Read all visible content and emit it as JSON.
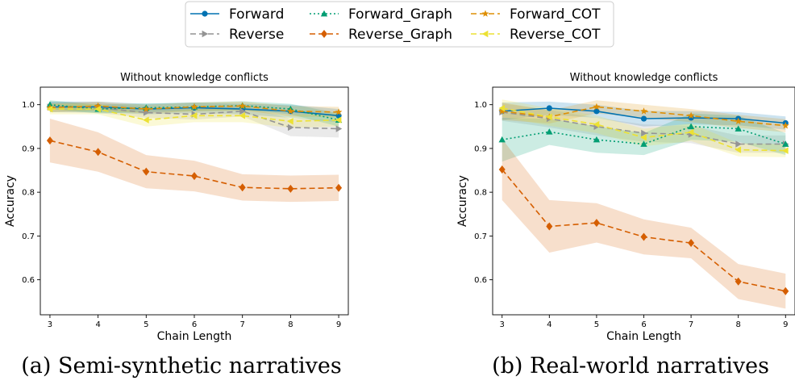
{
  "legend": {
    "placement": "top-center",
    "entries": [
      {
        "label": "Forward",
        "key": "forward"
      },
      {
        "label": "Reverse",
        "key": "reverse"
      },
      {
        "label": "Forward_Graph",
        "key": "forward_graph"
      },
      {
        "label": "Reverse_Graph",
        "key": "reverse_graph"
      },
      {
        "label": "Forward_COT",
        "key": "forward_cot"
      },
      {
        "label": "Reverse_COT",
        "key": "reverse_cot"
      }
    ]
  },
  "styles": {
    "forward": {
      "color": "#0072b2",
      "dash": "",
      "marker": "circle"
    },
    "reverse": {
      "color": "#949494",
      "dash": "7,4",
      "marker": "triangle-right"
    },
    "forward_graph": {
      "color": "#029e73",
      "dash": "2,3",
      "marker": "triangle-up"
    },
    "reverse_graph": {
      "color": "#d55e00",
      "dash": "7,4",
      "marker": "diamond"
    },
    "forward_cot": {
      "color": "#de8f05",
      "dash": "7,4",
      "marker": "star"
    },
    "reverse_cot": {
      "color": "#ece133",
      "dash": "7,4",
      "marker": "triangle-left"
    }
  },
  "chart_data": [
    {
      "type": "line",
      "title": "Without knowledge conflicts",
      "xlabel": "Chain Length",
      "ylabel": "Accuracy",
      "x": [
        3,
        4,
        5,
        6,
        7,
        8,
        9
      ],
      "xlim": [
        2.8,
        9.2
      ],
      "ylim": [
        0.52,
        1.04
      ],
      "yticks": [
        0.6,
        0.7,
        0.8,
        0.9,
        1.0
      ],
      "ytick_labels": [
        "0.6",
        "0.7",
        "0.8",
        "0.9",
        "1.0"
      ],
      "grid": false,
      "caption": "(a) Semi-synthetic narratives",
      "series": [
        {
          "key": "forward",
          "name": "Forward",
          "values": [
            0.995,
            0.995,
            0.99,
            0.993,
            0.99,
            0.985,
            0.975
          ],
          "band": [
            0.012,
            0.012,
            0.012,
            0.012,
            0.012,
            0.015,
            0.015
          ]
        },
        {
          "key": "reverse",
          "name": "Reverse",
          "values": [
            0.995,
            0.993,
            0.982,
            0.978,
            0.985,
            0.948,
            0.945
          ],
          "band": [
            0.012,
            0.012,
            0.012,
            0.012,
            0.012,
            0.02,
            0.02
          ]
        },
        {
          "key": "forward_graph",
          "name": "Forward_Graph",
          "values": [
            1.0,
            0.99,
            0.993,
            0.995,
            0.998,
            0.99,
            0.965
          ],
          "band": [
            0.01,
            0.01,
            0.01,
            0.01,
            0.01,
            0.012,
            0.015
          ]
        },
        {
          "key": "reverse_graph",
          "name": "Reverse_Graph",
          "values": [
            0.918,
            0.892,
            0.847,
            0.837,
            0.811,
            0.808,
            0.81
          ],
          "band": [
            0.05,
            0.045,
            0.038,
            0.035,
            0.03,
            0.03,
            0.03
          ]
        },
        {
          "key": "forward_cot",
          "name": "Forward_COT",
          "values": [
            0.993,
            0.997,
            0.99,
            0.995,
            0.997,
            0.985,
            0.983
          ],
          "band": [
            0.01,
            0.01,
            0.01,
            0.01,
            0.01,
            0.012,
            0.012
          ]
        },
        {
          "key": "reverse_cot",
          "name": "Reverse_COT",
          "values": [
            0.99,
            0.99,
            0.965,
            0.975,
            0.975,
            0.962,
            0.965
          ],
          "band": [
            0.012,
            0.012,
            0.015,
            0.015,
            0.015,
            0.015,
            0.015
          ]
        }
      ]
    },
    {
      "type": "line",
      "title": "Without knowledge conflicts",
      "xlabel": "Chain Length",
      "ylabel": "Accuracy",
      "x": [
        3,
        4,
        5,
        6,
        7,
        8,
        9
      ],
      "xlim": [
        2.8,
        9.2
      ],
      "ylim": [
        0.52,
        1.04
      ],
      "yticks": [
        0.6,
        0.7,
        0.8,
        0.9,
        1.0
      ],
      "ytick_labels": [
        "0.6",
        "0.7",
        "0.8",
        "0.9",
        "1.0"
      ],
      "grid": false,
      "caption": "(b) Real-world narratives",
      "series": [
        {
          "key": "forward",
          "name": "Forward",
          "values": [
            0.985,
            0.992,
            0.985,
            0.968,
            0.97,
            0.968,
            0.958
          ],
          "band": [
            0.02,
            0.015,
            0.015,
            0.018,
            0.015,
            0.015,
            0.015
          ]
        },
        {
          "key": "reverse",
          "name": "Reverse",
          "values": [
            0.983,
            0.968,
            0.95,
            0.935,
            0.932,
            0.91,
            0.91
          ],
          "band": [
            0.02,
            0.02,
            0.02,
            0.02,
            0.02,
            0.02,
            0.02
          ]
        },
        {
          "key": "forward_graph",
          "name": "Forward_Graph",
          "values": [
            0.92,
            0.938,
            0.92,
            0.91,
            0.95,
            0.945,
            0.91
          ],
          "band": [
            0.05,
            0.03,
            0.03,
            0.025,
            0.03,
            0.03,
            0.025
          ]
        },
        {
          "key": "reverse_graph",
          "name": "Reverse_Graph",
          "values": [
            0.852,
            0.722,
            0.73,
            0.698,
            0.684,
            0.596,
            0.574
          ],
          "band": [
            0.07,
            0.06,
            0.045,
            0.04,
            0.035,
            0.04,
            0.04
          ]
        },
        {
          "key": "forward_cot",
          "name": "Forward_COT",
          "values": [
            0.985,
            0.972,
            0.995,
            0.985,
            0.975,
            0.962,
            0.952
          ],
          "band": [
            0.02,
            0.015,
            0.015,
            0.015,
            0.015,
            0.015,
            0.015
          ]
        },
        {
          "key": "reverse_cot",
          "name": "Reverse_COT",
          "values": [
            0.992,
            0.972,
            0.955,
            0.925,
            0.937,
            0.897,
            0.895
          ],
          "band": [
            0.02,
            0.02,
            0.02,
            0.02,
            0.02,
            0.015,
            0.015
          ]
        }
      ]
    }
  ]
}
